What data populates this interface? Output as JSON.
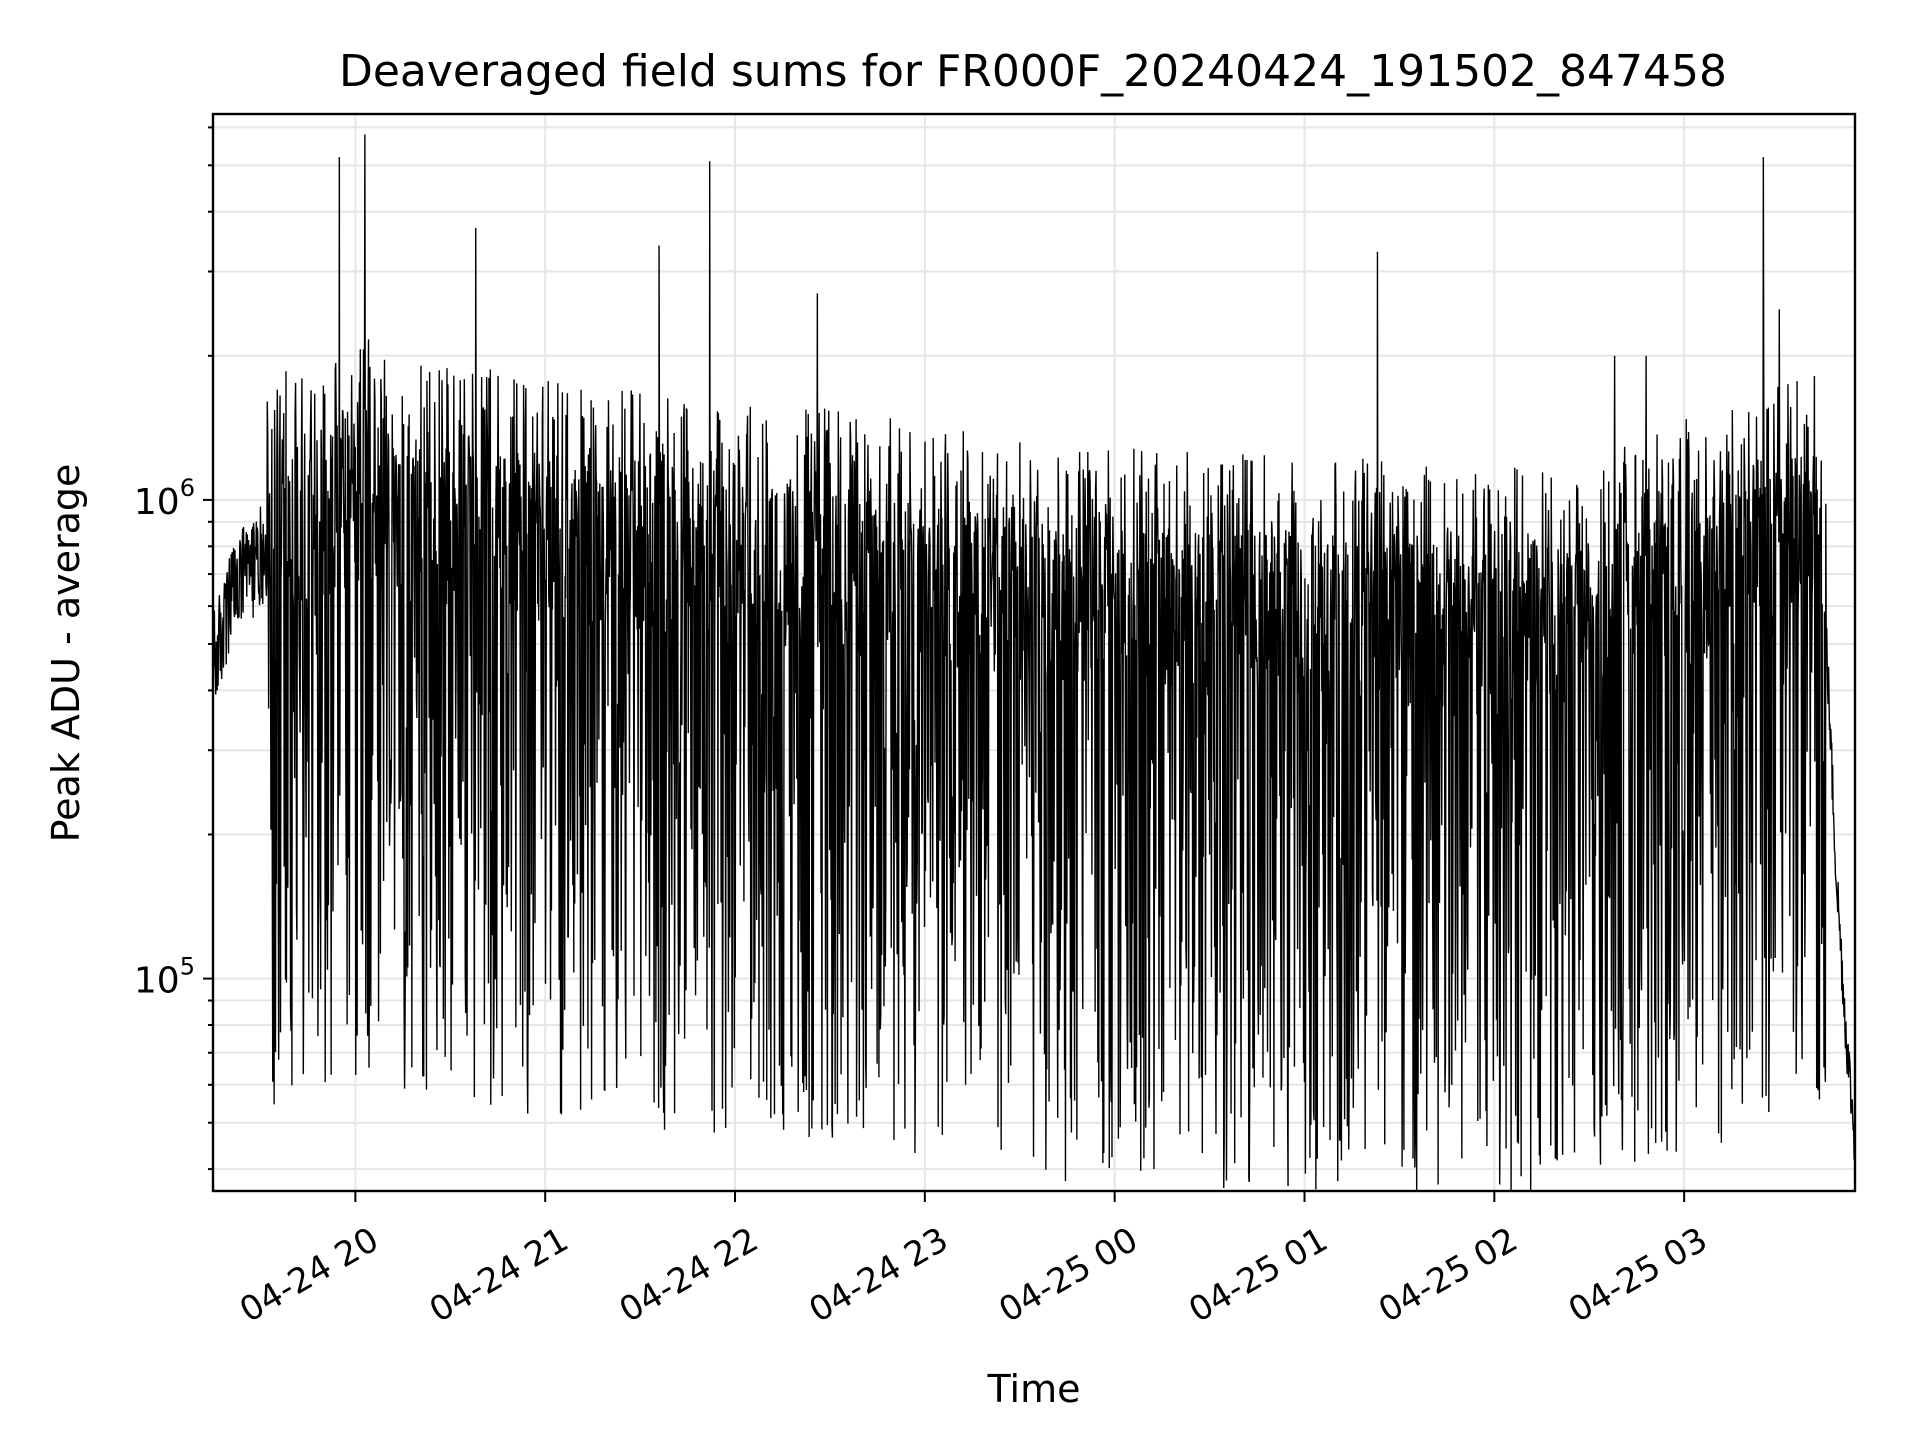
{
  "chart_data": {
    "type": "line",
    "title": "Deaveraged field sums for FR000F_20240424_191502_847458",
    "xlabel": "Time",
    "ylabel": "Peak ADU - average",
    "yscale": "log",
    "xlim": [
      "2024-04-24 19:15",
      "2024-04-25 03:54"
    ],
    "ylim": [
      36000,
      6400000
    ],
    "grid": true,
    "x_ticks": [
      "2024-04-24 20:00",
      "2024-04-24 21:00",
      "2024-04-24 22:00",
      "2024-04-24 23:00",
      "2024-04-25 00:00",
      "2024-04-25 01:00",
      "2024-04-25 02:00",
      "2024-04-25 03:00"
    ],
    "x_tick_labels": [
      "04-24 20",
      "04-24 21",
      "04-24 22",
      "04-24 23",
      "04-25 00",
      "04-25 01",
      "04-25 02",
      "04-25 03"
    ],
    "y_ticks": [
      {
        "value": 100000,
        "base": "10",
        "exp": "5"
      },
      {
        "value": 1000000,
        "base": "10",
        "exp": "6"
      }
    ],
    "line_color": "#000000",
    "series": [
      {
        "x": [
          "2024-04-24 19:15",
          "2024-04-24 19:22",
          "2024-04-24 19:31",
          "2024-04-24 19:40",
          "2024-04-24 19:48",
          "2024-04-24 19:57",
          "2024-04-24 20:04",
          "2024-04-24 20:15",
          "2024-04-24 20:38",
          "2024-04-24 21:05",
          "2024-04-24 21:40",
          "2024-04-24 21:50",
          "2024-04-24 22:26",
          "2024-04-24 22:50",
          "2024-04-24 23:15",
          "2024-04-24 23:40",
          "2024-04-25 00:30",
          "2024-04-25 01:23",
          "2024-04-25 01:50",
          "2024-04-25 02:25",
          "2024-04-25 02:40",
          "2024-04-25 03:15",
          "2024-04-25 03:26",
          "2024-04-25 03:30",
          "2024-04-25 03:42",
          "2024-04-25 03:45",
          "2024-04-25 03:48",
          "2024-04-25 03:51",
          "2024-04-25 03:54"
        ],
        "y": [
          450000,
          650000,
          780000,
          900000,
          850000,
          950000,
          1000000,
          900000,
          870000,
          800000,
          760000,
          720000,
          720000,
          680000,
          640000,
          600000,
          580000,
          560000,
          520000,
          560000,
          620000,
          720000,
          750000,
          820000,
          850000,
          500000,
          170000,
          80000,
          45000
        ],
        "peaks": [
          {
            "x": "2024-04-24 19:55",
            "y": 5200000
          },
          {
            "x": "2024-04-24 20:03",
            "y": 5800000
          },
          {
            "x": "2024-04-24 20:38",
            "y": 3700000
          },
          {
            "x": "2024-04-24 21:36",
            "y": 3400000
          },
          {
            "x": "2024-04-24 21:52",
            "y": 5100000
          },
          {
            "x": "2024-04-24 22:26",
            "y": 2700000
          },
          {
            "x": "2024-04-25 01:23",
            "y": 3300000
          },
          {
            "x": "2024-04-25 02:38",
            "y": 2000000
          },
          {
            "x": "2024-04-25 02:48",
            "y": 2000000
          },
          {
            "x": "2024-04-25 03:25",
            "y": 5200000
          },
          {
            "x": "2024-04-25 03:30",
            "y": 2500000
          }
        ]
      }
    ]
  }
}
